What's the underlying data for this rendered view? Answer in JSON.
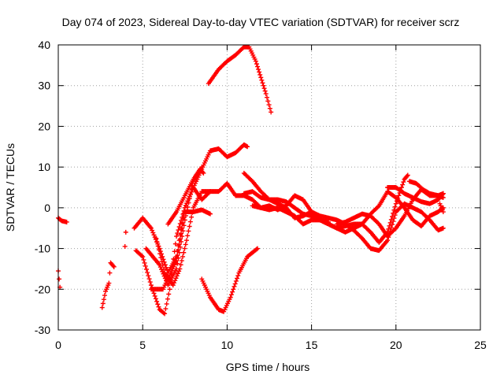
{
  "chart_data": {
    "type": "scatter",
    "title": "Day 074 of 2023, Sidereal Day-to-day VTEC variation (SDTVAR) for receiver scrz",
    "xlabel": "GPS time / hours",
    "ylabel": "SDTVAR / TECUs",
    "xlim": [
      0,
      25
    ],
    "ylim": [
      -30,
      40
    ],
    "xticks": [
      0,
      5,
      10,
      15,
      20,
      25
    ],
    "yticks": [
      -30,
      -20,
      -10,
      0,
      10,
      20,
      30,
      40
    ],
    "grid": true,
    "marker": "+",
    "color": "#ff0000",
    "series": [
      {
        "name": "s1",
        "points": [
          [
            0.0,
            -2.5
          ],
          [
            0.2,
            -3.2
          ],
          [
            0.5,
            -3.5
          ]
        ]
      },
      {
        "name": "s2",
        "points": [
          [
            0.0,
            -15.5
          ],
          [
            0.05,
            -17.5
          ],
          [
            0.1,
            -19.5
          ]
        ]
      },
      {
        "name": "s3",
        "points": [
          [
            2.6,
            -24.5
          ],
          [
            2.8,
            -20.5
          ],
          [
            3.0,
            -18.5
          ],
          [
            3.1,
            -13.5
          ],
          [
            3.3,
            -14.5
          ]
        ]
      },
      {
        "name": "s4",
        "points": [
          [
            4.0,
            -6.0
          ],
          [
            3.95,
            -9.5
          ]
        ]
      },
      {
        "name": "s5",
        "points": [
          [
            4.5,
            -5.0
          ],
          [
            5.0,
            -2.5
          ],
          [
            5.5,
            -5.0
          ],
          [
            6.0,
            -10.0
          ],
          [
            6.5,
            -16.0
          ],
          [
            7.0,
            -12.0
          ],
          [
            7.5,
            0.0
          ],
          [
            8.0,
            5.0
          ],
          [
            8.5,
            2.0
          ],
          [
            9.0,
            4.0
          ],
          [
            9.5,
            4.0
          ],
          [
            10.0,
            6.0
          ],
          [
            10.5,
            3.0
          ],
          [
            11.0,
            3.0
          ],
          [
            11.5,
            2.0
          ],
          [
            12.0,
            0.0
          ],
          [
            12.5,
            0.5
          ],
          [
            13.0,
            -0.5
          ],
          [
            13.5,
            0.5
          ],
          [
            14.0,
            3.0
          ],
          [
            14.5,
            2.0
          ],
          [
            15.0,
            -1.0
          ],
          [
            15.5,
            -3.0
          ],
          [
            16.0,
            -4.0
          ],
          [
            16.5,
            -5.0
          ],
          [
            17.0,
            -6.0
          ],
          [
            17.5,
            -5.0
          ],
          [
            18.0,
            -4.0
          ],
          [
            18.5,
            -1.5
          ],
          [
            19.0,
            0.5
          ],
          [
            19.5,
            4.0
          ],
          [
            20.0,
            2.5
          ],
          [
            20.5,
            0.0
          ],
          [
            21.0,
            -3.0
          ],
          [
            21.5,
            -4.5
          ],
          [
            22.0,
            -2.0
          ],
          [
            22.5,
            -1.0
          ],
          [
            22.8,
            0.0
          ]
        ]
      },
      {
        "name": "s6",
        "points": [
          [
            4.6,
            -10.5
          ],
          [
            5.0,
            -12.0
          ],
          [
            5.5,
            -19.0
          ],
          [
            6.0,
            -25.0
          ],
          [
            6.3,
            -26.0
          ],
          [
            6.6,
            -20.0
          ],
          [
            7.0,
            -7.0
          ],
          [
            7.5,
            0.0
          ],
          [
            8.0,
            5.0
          ],
          [
            8.5,
            9.5
          ],
          [
            9.0,
            14.0
          ],
          [
            9.5,
            14.5
          ],
          [
            10.0,
            12.5
          ],
          [
            10.5,
            13.5
          ],
          [
            11.0,
            15.5
          ],
          [
            11.2,
            15.0
          ]
        ]
      },
      {
        "name": "s7",
        "points": [
          [
            5.2,
            -10.0
          ],
          [
            6.0,
            -14.0
          ],
          [
            6.5,
            -19.0
          ],
          [
            7.0,
            -15.0
          ],
          [
            7.5,
            -3.0
          ],
          [
            8.0,
            6.5
          ],
          [
            8.5,
            10.0
          ]
        ]
      },
      {
        "name": "s8",
        "points": [
          [
            5.5,
            -20.0
          ],
          [
            6.2,
            -20.0
          ],
          [
            7.0,
            -13.0
          ],
          [
            7.5,
            -1.0
          ],
          [
            8.0,
            -1.0
          ],
          [
            8.5,
            -0.5
          ],
          [
            9.0,
            -1.5
          ]
        ]
      },
      {
        "name": "s9",
        "points": [
          [
            5.8,
            -7.5
          ],
          [
            6.3,
            -16.0
          ],
          [
            6.8,
            -19.0
          ],
          [
            7.2,
            -15.0
          ],
          [
            7.6,
            -8.0
          ],
          [
            8.0,
            0.0
          ],
          [
            8.5,
            4.0
          ],
          [
            9.0,
            4.0
          ]
        ]
      },
      {
        "name": "s10",
        "points": [
          [
            6.5,
            -4.0
          ],
          [
            7.0,
            -1.0
          ],
          [
            7.5,
            3.0
          ],
          [
            8.0,
            7.0
          ],
          [
            8.4,
            9.5
          ],
          [
            8.6,
            8.5
          ]
        ]
      },
      {
        "name": "s11",
        "points": [
          [
            8.5,
            -17.5
          ],
          [
            9.0,
            -22.0
          ],
          [
            9.5,
            -25.0
          ],
          [
            9.8,
            -25.5
          ],
          [
            10.2,
            -22.0
          ],
          [
            10.7,
            -16.0
          ],
          [
            11.2,
            -12.0
          ],
          [
            11.8,
            -10.0
          ]
        ]
      },
      {
        "name": "s12",
        "points": [
          [
            8.9,
            30.5
          ],
          [
            9.5,
            34.0
          ],
          [
            10.0,
            36.0
          ],
          [
            10.5,
            37.5
          ],
          [
            11.0,
            39.5
          ],
          [
            11.3,
            39.5
          ],
          [
            11.7,
            36.0
          ],
          [
            12.0,
            32.0
          ],
          [
            12.3,
            28.0
          ],
          [
            12.6,
            23.5
          ]
        ]
      },
      {
        "name": "s13",
        "points": [
          [
            11.0,
            8.5
          ],
          [
            11.5,
            6.5
          ],
          [
            12.0,
            4.0
          ],
          [
            12.5,
            2.0
          ],
          [
            13.0,
            1.0
          ],
          [
            13.5,
            0.0
          ],
          [
            14.0,
            -2.5
          ],
          [
            14.5,
            -2.0
          ],
          [
            15.0,
            -1.0
          ],
          [
            15.5,
            -2.0
          ],
          [
            16.0,
            -2.5
          ],
          [
            16.5,
            -3.0
          ],
          [
            17.0,
            -4.0
          ],
          [
            17.5,
            -5.5
          ],
          [
            18.0,
            -7.5
          ],
          [
            18.5,
            -10.0
          ],
          [
            19.0,
            -10.5
          ],
          [
            19.5,
            -8.0
          ],
          [
            20.0,
            -1.0
          ],
          [
            20.5,
            1.0
          ],
          [
            21.0,
            0.0
          ],
          [
            21.5,
            -1.0
          ],
          [
            22.0,
            -3.0
          ],
          [
            22.5,
            -5.5
          ],
          [
            22.8,
            -5.0
          ]
        ]
      },
      {
        "name": "s14",
        "points": [
          [
            11.5,
            0.5
          ],
          [
            12.0,
            0.0
          ],
          [
            12.5,
            -0.5
          ],
          [
            13.0,
            0.0
          ],
          [
            13.5,
            -1.0
          ],
          [
            14.0,
            -2.0
          ],
          [
            14.5,
            -4.0
          ],
          [
            15.0,
            -3.0
          ],
          [
            15.5,
            -3.0
          ],
          [
            16.0,
            -4.0
          ],
          [
            16.5,
            -5.0
          ],
          [
            17.0,
            -4.5
          ],
          [
            17.5,
            -4.0
          ],
          [
            18.0,
            -4.0
          ],
          [
            18.5,
            -6.0
          ],
          [
            19.0,
            -8.5
          ],
          [
            19.5,
            -6.0
          ],
          [
            20.0,
            1.0
          ],
          [
            20.5,
            7.0
          ],
          [
            20.7,
            8.0
          ]
        ]
      },
      {
        "name": "s15",
        "points": [
          [
            11.0,
            3.5
          ],
          [
            11.5,
            4.0
          ],
          [
            12.0,
            2.5
          ],
          [
            12.5,
            2.0
          ],
          [
            13.0,
            2.0
          ],
          [
            13.5,
            1.5
          ],
          [
            14.0,
            0.0
          ],
          [
            14.5,
            -1.5
          ],
          [
            15.0,
            -2.0
          ],
          [
            15.5,
            -3.0
          ],
          [
            16.0,
            -3.5
          ]
        ]
      },
      {
        "name": "s16",
        "points": [
          [
            16.5,
            -4.0
          ],
          [
            17.0,
            -3.5
          ],
          [
            17.5,
            -2.5
          ],
          [
            18.0,
            -1.5
          ],
          [
            18.5,
            -2.0
          ],
          [
            19.0,
            -4.0
          ],
          [
            19.5,
            -7.0
          ],
          [
            20.0,
            -5.0
          ],
          [
            20.5,
            -2.0
          ],
          [
            21.0,
            2.0
          ],
          [
            21.5,
            4.5
          ],
          [
            22.0,
            3.0
          ],
          [
            22.5,
            3.0
          ],
          [
            22.8,
            2.5
          ]
        ]
      },
      {
        "name": "s17",
        "points": [
          [
            19.5,
            5.0
          ],
          [
            20.0,
            5.0
          ],
          [
            20.5,
            3.5
          ],
          [
            21.0,
            2.5
          ],
          [
            21.5,
            1.5
          ],
          [
            22.0,
            1.0
          ],
          [
            22.5,
            2.0
          ],
          [
            22.8,
            3.5
          ]
        ]
      },
      {
        "name": "s18",
        "points": [
          [
            20.8,
            6.5
          ],
          [
            21.2,
            6.0
          ],
          [
            21.6,
            4.5
          ],
          [
            22.0,
            3.5
          ],
          [
            22.5,
            3.0
          ],
          [
            22.8,
            3.5
          ]
        ]
      },
      {
        "name": "s19",
        "points": [
          [
            22.6,
            1.0
          ],
          [
            22.8,
            -1.0
          ]
        ]
      }
    ]
  }
}
